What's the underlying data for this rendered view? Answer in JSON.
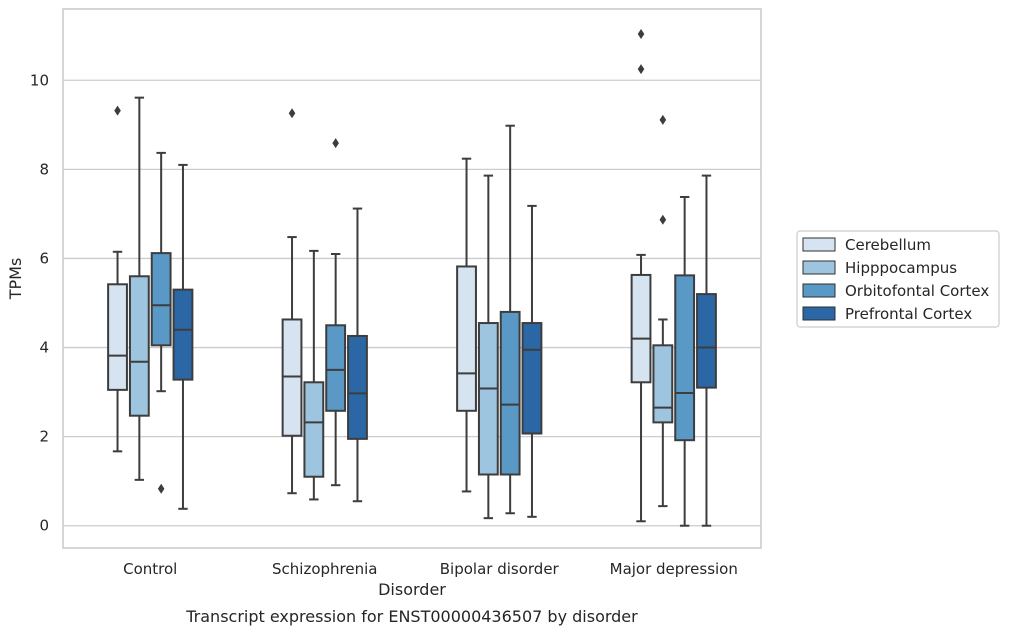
{
  "chart_data": {
    "type": "box",
    "caption": "Transcript expression for ENST00000436507 by disorder",
    "xlabel": "Disorder",
    "ylabel": "TPMs",
    "ylim": [
      -0.5,
      11.6
    ],
    "yticks": [
      0,
      2,
      4,
      6,
      8,
      10
    ],
    "grid": "horizontal",
    "legend_position": "right",
    "categories": [
      "Control",
      "Schizophrenia",
      "Bipolar disorder",
      "Major depression"
    ],
    "series": [
      {
        "name": "Cerebellum",
        "color": "#d6e4f2",
        "boxes": [
          {
            "whislo": 1.67,
            "q1": 3.05,
            "med": 3.82,
            "q3": 5.42,
            "whishi": 6.15,
            "fliers": [
              9.32
            ]
          },
          {
            "whislo": 0.73,
            "q1": 2.02,
            "med": 3.35,
            "q3": 4.63,
            "whishi": 6.48,
            "fliers": [
              9.26
            ]
          },
          {
            "whislo": 0.77,
            "q1": 2.58,
            "med": 3.42,
            "q3": 5.82,
            "whishi": 8.24,
            "fliers": []
          },
          {
            "whislo": 0.1,
            "q1": 3.22,
            "med": 4.2,
            "q3": 5.63,
            "whishi": 6.08,
            "fliers": [
              10.25,
              11.04
            ]
          }
        ]
      },
      {
        "name": "Hipppocampus",
        "color": "#9ec5df",
        "boxes": [
          {
            "whislo": 1.03,
            "q1": 2.47,
            "med": 3.68,
            "q3": 5.6,
            "whishi": 9.61,
            "fliers": []
          },
          {
            "whislo": 0.59,
            "q1": 1.1,
            "med": 2.32,
            "q3": 3.22,
            "whishi": 6.17,
            "fliers": []
          },
          {
            "whislo": 0.17,
            "q1": 1.15,
            "med": 3.08,
            "q3": 4.55,
            "whishi": 7.86,
            "fliers": []
          },
          {
            "whislo": 0.44,
            "q1": 2.32,
            "med": 2.65,
            "q3": 4.05,
            "whishi": 4.63,
            "fliers": [
              6.87,
              9.11
            ]
          }
        ]
      },
      {
        "name": "Orbitofontal Cortex",
        "color": "#5a98c6",
        "boxes": [
          {
            "whislo": 3.02,
            "q1": 4.05,
            "med": 4.95,
            "q3": 6.12,
            "whishi": 8.37,
            "fliers": [
              0.83
            ]
          },
          {
            "whislo": 0.91,
            "q1": 2.58,
            "med": 3.5,
            "q3": 4.5,
            "whishi": 6.1,
            "fliers": [
              8.59
            ]
          },
          {
            "whislo": 0.28,
            "q1": 1.15,
            "med": 2.72,
            "q3": 4.8,
            "whishi": 8.98,
            "fliers": []
          },
          {
            "whislo": 0.0,
            "q1": 1.92,
            "med": 2.98,
            "q3": 5.62,
            "whishi": 7.38,
            "fliers": []
          }
        ]
      },
      {
        "name": "Prefrontal Cortex",
        "color": "#2b67a5",
        "boxes": [
          {
            "whislo": 0.38,
            "q1": 3.28,
            "med": 4.4,
            "q3": 5.3,
            "whishi": 8.1,
            "fliers": []
          },
          {
            "whislo": 0.55,
            "q1": 1.95,
            "med": 2.97,
            "q3": 4.26,
            "whishi": 7.12,
            "fliers": []
          },
          {
            "whislo": 0.2,
            "q1": 2.07,
            "med": 3.95,
            "q3": 4.55,
            "whishi": 7.18,
            "fliers": []
          },
          {
            "whislo": 0.0,
            "q1": 3.1,
            "med": 4.0,
            "q3": 5.2,
            "whishi": 7.86,
            "fliers": []
          }
        ]
      }
    ]
  }
}
